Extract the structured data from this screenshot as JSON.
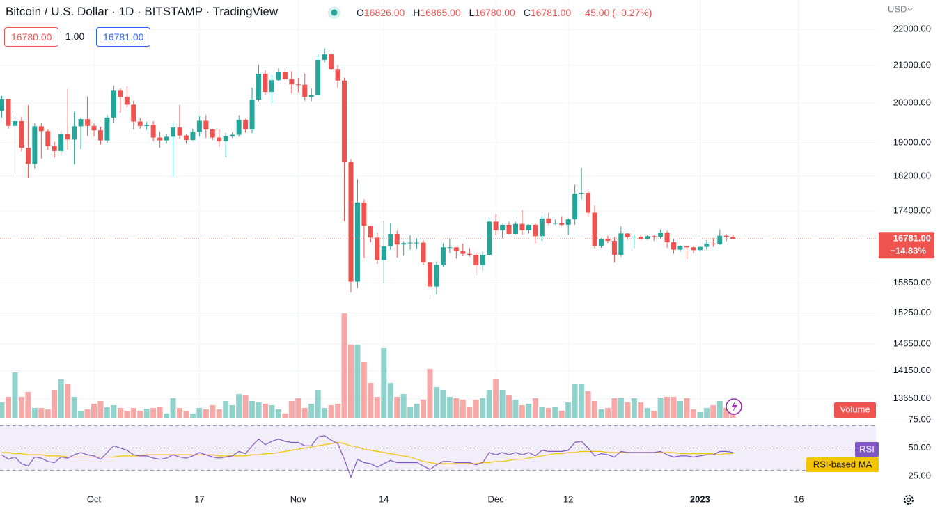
{
  "header": {
    "title": "Bitcoin / U.S. Dollar · 1D · BITSTAMP · TradingView",
    "ohlc": [
      {
        "key": "O",
        "value": "16826.00"
      },
      {
        "key": "H",
        "value": "16865.00"
      },
      {
        "key": "L",
        "value": "16780.00"
      },
      {
        "key": "C",
        "value": "16781.00"
      }
    ],
    "change": "−45.00 (−0.27%)",
    "bid": "16780.00",
    "spread": "1.00",
    "ask": "16781.00",
    "currency": "USD"
  },
  "chart_data": [
    {
      "type": "candlestick",
      "up_color": "#26a69a",
      "down_color": "#ef5350",
      "log_scale": true,
      "grid": true,
      "ylim": [
        13320,
        22850
      ],
      "yticks": [
        {
          "value": 22000,
          "label": "22000.00"
        },
        {
          "value": 21000,
          "label": "21000.00"
        },
        {
          "value": 20000,
          "label": "20000.00"
        },
        {
          "value": 19000,
          "label": "19000.00"
        },
        {
          "value": 18200,
          "label": "18200.00"
        },
        {
          "value": 17400,
          "label": "17400.00"
        },
        {
          "value": 15850,
          "label": "15850.00"
        },
        {
          "value": 15250,
          "label": "15250.00"
        },
        {
          "value": 14650,
          "label": "14650.00"
        },
        {
          "value": 14150,
          "label": "14150.00"
        },
        {
          "value": 13650,
          "label": "13650.00"
        }
      ],
      "xlim": [
        -0.27,
        132.7
      ],
      "xticks": [
        {
          "value": 14,
          "label": "Oct"
        },
        {
          "value": 30,
          "label": "17"
        },
        {
          "value": 45,
          "label": "Nov"
        },
        {
          "value": 58,
          "label": "14"
        },
        {
          "value": 75,
          "label": "Dec"
        },
        {
          "value": 86,
          "label": "12"
        },
        {
          "value": 106,
          "label": "2023"
        },
        {
          "value": 121,
          "label": "16"
        }
      ],
      "last_price": {
        "value": 16781,
        "label": "16781.00",
        "change": "−14.83%"
      },
      "open": [
        19800,
        20110,
        19420,
        19540,
        18880,
        18490,
        19410,
        19290,
        18920,
        18800,
        19220,
        19080,
        19410,
        19590,
        19420,
        19310,
        19060,
        19630,
        20340,
        20160,
        19960,
        19530,
        19420,
        19450,
        19130,
        19060,
        19150,
        19380,
        19180,
        19070,
        19270,
        19550,
        19330,
        19130,
        19040,
        19160,
        19200,
        19570,
        19330,
        20090,
        20770,
        20290,
        20600,
        20810,
        20630,
        20490,
        20480,
        20160,
        20210,
        21150,
        21300,
        20900,
        20590,
        18540,
        15880,
        17590,
        17070,
        16810,
        16330,
        16620,
        16890,
        16660,
        16690,
        16700,
        16700,
        16280,
        15780,
        16230,
        16600,
        16600,
        16520,
        16460,
        16440,
        16220,
        16440,
        17160,
        16970,
        17090,
        16890,
        17110,
        16970,
        17090,
        16840,
        17230,
        17130,
        17130,
        17090,
        17210,
        17790,
        17810,
        17360,
        16630,
        16780,
        16740,
        16440,
        16900,
        16820,
        16830,
        16780,
        16840,
        16830,
        16920,
        16710,
        16550,
        16630,
        16600,
        16540,
        16610,
        16680,
        16670,
        16850,
        16826
      ],
      "high": [
        20190,
        20110,
        19680,
        19650,
        19950,
        19490,
        19500,
        19330,
        19030,
        19300,
        20370,
        19770,
        19630,
        20170,
        19480,
        19400,
        19700,
        20460,
        20380,
        20440,
        20060,
        19620,
        19520,
        19540,
        19270,
        19230,
        19510,
        19950,
        19230,
        19350,
        19670,
        19700,
        19350,
        19340,
        19240,
        19260,
        19690,
        19600,
        20400,
        21020,
        20870,
        20740,
        20920,
        20930,
        20840,
        20660,
        20780,
        20380,
        21300,
        21470,
        21380,
        21000,
        20670,
        18600,
        18130,
        17660,
        17070,
        16920,
        17180,
        17130,
        16960,
        16730,
        16860,
        16800,
        16750,
        16290,
        16300,
        16690,
        16790,
        16600,
        16680,
        16580,
        16490,
        16530,
        17240,
        17330,
        17100,
        17160,
        17150,
        17420,
        17100,
        17130,
        17300,
        17350,
        17210,
        17280,
        17230,
        18000,
        18390,
        17840,
        17520,
        16800,
        16850,
        16820,
        17060,
        16910,
        16880,
        16880,
        16860,
        16870,
        16990,
        16960,
        16780,
        16650,
        16630,
        16630,
        16630,
        16760,
        16800,
        16990,
        16880,
        16865
      ],
      "low": [
        19620,
        19350,
        18240,
        18780,
        18150,
        18370,
        18620,
        18830,
        18640,
        18680,
        18830,
        18480,
        18850,
        19170,
        19160,
        18960,
        19000,
        19500,
        19750,
        19880,
        19330,
        19340,
        19320,
        19040,
        18880,
        18980,
        18180,
        19100,
        18980,
        19050,
        19160,
        19120,
        19070,
        18900,
        18650,
        19120,
        19150,
        19250,
        19240,
        20050,
        20220,
        20000,
        20580,
        20560,
        20250,
        20280,
        20060,
        20050,
        20200,
        21080,
        20880,
        20400,
        17170,
        15660,
        15750,
        16370,
        16710,
        16250,
        15840,
        16550,
        16380,
        16420,
        16550,
        16570,
        16230,
        15500,
        15620,
        16190,
        16480,
        16360,
        16410,
        16400,
        16010,
        16110,
        16430,
        16860,
        16800,
        16880,
        16880,
        16870,
        16900,
        16690,
        16740,
        17090,
        17090,
        17070,
        16870,
        17090,
        17660,
        17280,
        16580,
        16590,
        16690,
        16280,
        16400,
        16760,
        16580,
        16760,
        16760,
        16740,
        16780,
        16590,
        16460,
        16500,
        16350,
        16470,
        16520,
        16550,
        16610,
        16650,
        16730,
        16780
      ],
      "close": [
        20110,
        19420,
        19540,
        18880,
        18490,
        19410,
        19290,
        18920,
        18800,
        19220,
        19080,
        19410,
        19590,
        19420,
        19310,
        19060,
        19630,
        20340,
        20160,
        19960,
        19530,
        19420,
        19450,
        19130,
        19060,
        19150,
        19380,
        19180,
        19070,
        19270,
        19550,
        19330,
        19130,
        19040,
        19160,
        19200,
        19570,
        19330,
        20090,
        20770,
        20290,
        20600,
        20810,
        20630,
        20490,
        20480,
        20160,
        20210,
        21150,
        21300,
        20900,
        20590,
        18540,
        15880,
        17590,
        17070,
        16810,
        16330,
        16620,
        16890,
        16660,
        16690,
        16700,
        16700,
        16280,
        15780,
        16230,
        16600,
        16600,
        16520,
        16460,
        16440,
        16220,
        16440,
        17160,
        16970,
        17090,
        16890,
        17110,
        16970,
        17090,
        16840,
        17230,
        17130,
        17130,
        17090,
        17210,
        17790,
        17810,
        17360,
        16630,
        16780,
        16740,
        16440,
        16900,
        16820,
        16830,
        16780,
        16840,
        16830,
        16920,
        16710,
        16550,
        16630,
        16600,
        16540,
        16610,
        16680,
        16670,
        16850,
        16826,
        16781
      ],
      "volume_label": "Volume",
      "volume_ylim": [
        0,
        60000
      ],
      "volume": [
        2200,
        3000,
        6500,
        3000,
        3700,
        1400,
        1400,
        1200,
        4000,
        5500,
        4800,
        3000,
        1000,
        1200,
        2000,
        2400,
        1500,
        1800,
        1400,
        1000,
        1400,
        1000,
        1300,
        1400,
        1600,
        600,
        2800,
        1400,
        1000,
        600,
        1400,
        1200,
        1800,
        1200,
        2400,
        1800,
        3400,
        3200,
        2400,
        2200,
        2000,
        1800,
        1200,
        600,
        2400,
        2800,
        1400,
        2000,
        4000,
        1400,
        1800,
        2000,
        15000,
        10500,
        10500,
        8000,
        5000,
        3000,
        10000,
        5000,
        3000,
        3400,
        1600,
        2000,
        2600,
        7000,
        4400,
        4000,
        3000,
        2800,
        2600,
        1600,
        2600,
        2800,
        4000,
        5600,
        4000,
        3200,
        2600,
        1800,
        2000,
        2800,
        1600,
        1400,
        1600,
        1000,
        2200,
        4800,
        4800,
        3800,
        2400,
        1200,
        1400,
        2800,
        2800,
        2200,
        2800,
        2200,
        1400,
        1000,
        2800,
        3000,
        3000,
        2400,
        2800,
        1200,
        800,
        1400,
        1800,
        2400,
        1400,
        600
      ]
    },
    {
      "type": "line",
      "ylim": [
        15,
        77
      ],
      "yticks": [
        {
          "value": 75,
          "label": "75.00"
        },
        {
          "value": 50,
          "label": "50.00"
        },
        {
          "value": 25,
          "label": "25.00"
        }
      ],
      "levels": [
        70,
        50,
        30
      ],
      "series": [
        {
          "name": "RSI",
          "color": "#7e57c2",
          "values": [
            44,
            40,
            42,
            36,
            34,
            42,
            41,
            38,
            37,
            42,
            41,
            44,
            46,
            44,
            43,
            40,
            46,
            52,
            50,
            48,
            44,
            43,
            43,
            41,
            40,
            41,
            44,
            42,
            41,
            43,
            46,
            44,
            42,
            41,
            42,
            43,
            47,
            45,
            52,
            58,
            53,
            56,
            58,
            56,
            55,
            55,
            52,
            52,
            60,
            61,
            57,
            54,
            40,
            24,
            40,
            37,
            36,
            33,
            36,
            39,
            37,
            37,
            37,
            37,
            34,
            31,
            35,
            38,
            38,
            37,
            37,
            37,
            35,
            37,
            46,
            44,
            46,
            44,
            46,
            44,
            46,
            43,
            48,
            47,
            47,
            47,
            48,
            55,
            56,
            50,
            43,
            45,
            44,
            42,
            47,
            46,
            46,
            46,
            46,
            46,
            47,
            44,
            42,
            43,
            43,
            42,
            43,
            44,
            44,
            47,
            47,
            46
          ]
        },
        {
          "name": "RSI-based MA",
          "color": "#f5c400",
          "values": [
            46,
            46,
            45,
            45,
            44,
            44,
            44,
            43,
            43,
            43,
            42,
            42,
            42,
            42,
            42,
            42,
            42,
            42,
            43,
            43,
            43,
            43,
            44,
            44,
            44,
            44,
            44,
            44,
            44,
            44,
            44,
            44,
            44,
            43,
            43,
            43,
            43,
            43,
            44,
            44,
            45,
            45,
            46,
            47,
            48,
            49,
            50,
            51,
            52,
            53,
            54,
            55,
            54,
            52,
            51,
            49,
            48,
            47,
            46,
            45,
            44,
            43,
            42,
            40,
            38,
            37,
            36,
            36,
            36,
            36,
            36,
            36,
            36,
            37,
            37,
            38,
            38,
            39,
            40,
            40,
            41,
            42,
            43,
            44,
            45,
            45,
            46,
            46,
            47,
            47,
            47,
            47,
            46,
            46,
            46,
            46,
            46,
            46,
            46,
            46,
            46,
            46,
            46,
            45,
            45,
            45,
            45,
            45,
            45,
            44,
            45,
            45
          ]
        }
      ]
    }
  ]
}
